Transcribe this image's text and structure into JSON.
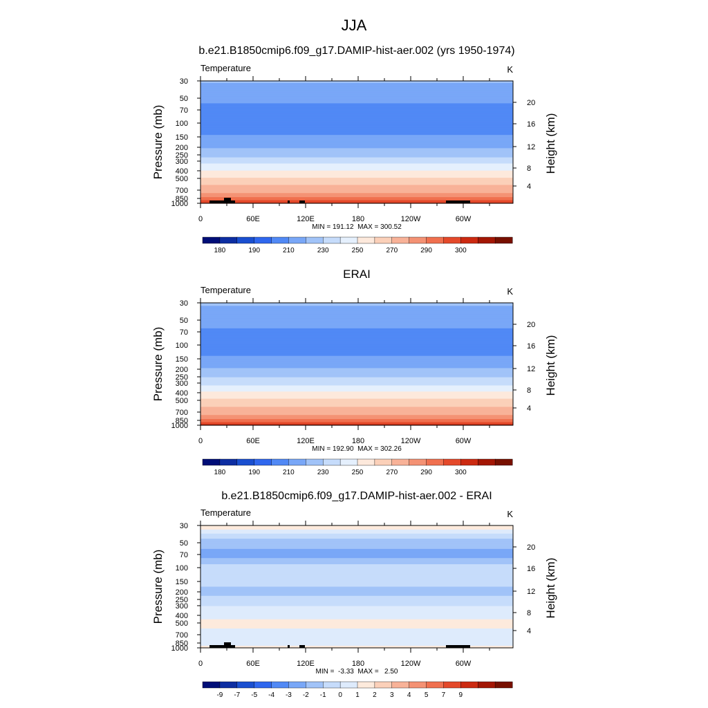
{
  "page": {
    "title": "JJA"
  },
  "colors": {
    "abs_palette": [
      "#000e77",
      "#0d2ea2",
      "#1a4fd0",
      "#2f67ee",
      "#5189f5",
      "#79a7f7",
      "#a1c3f8",
      "#c6dcfb",
      "#e5f0fd",
      "#fde9dc",
      "#fbd0b9",
      "#f8b298",
      "#f49274",
      "#f0704f",
      "#e4492a",
      "#cc2a11",
      "#a31604",
      "#771000"
    ],
    "diff_palette": [
      "#000e77",
      "#0d2ea2",
      "#1a4fd0",
      "#2f67ee",
      "#5189f5",
      "#79a7f7",
      "#a1c3f8",
      "#c6dcfb",
      "#deebfc",
      "#fdeadc",
      "#fbd0b9",
      "#f8b298",
      "#f49274",
      "#f0704f",
      "#e4492a",
      "#cc2a11",
      "#a31604",
      "#771000"
    ],
    "topography": "#000000"
  },
  "chart_data": [
    {
      "type": "heatmap",
      "title": "b.e21.B1850cmip6.f09_g17.DAMIP-hist-aer.002 (yrs 1950-1974)",
      "variable_label": "Temperature",
      "units": "K",
      "ylabel": "Pressure (mb)",
      "ylabel_right": "Height (km)",
      "x_ticks": [
        "0",
        "60E",
        "120E",
        "180",
        "120W",
        "60W"
      ],
      "y_ticks": [
        "30",
        "50",
        "70",
        "100",
        "150",
        "200",
        "250",
        "300",
        "400",
        "500",
        "700",
        "850",
        "1000"
      ],
      "y2_ticks": [
        "20",
        "16",
        "12",
        "8",
        "4"
      ],
      "stats": "MIN = 191.12  MAX = 300.52",
      "min": 191.12,
      "max": 300.52,
      "colorbar_labels": [
        "180",
        "190",
        "210",
        "230",
        "250",
        "270",
        "290",
        "300"
      ],
      "zonal_mean_profile": [
        {
          "p": 30,
          "t": 221
        },
        {
          "p": 50,
          "t": 213
        },
        {
          "p": 70,
          "t": 206
        },
        {
          "p": 100,
          "t": 203
        },
        {
          "p": 150,
          "t": 211
        },
        {
          "p": 200,
          "t": 219
        },
        {
          "p": 250,
          "t": 227
        },
        {
          "p": 300,
          "t": 236
        },
        {
          "p": 400,
          "t": 250
        },
        {
          "p": 500,
          "t": 261
        },
        {
          "p": 700,
          "t": 277
        },
        {
          "p": 850,
          "t": 287
        },
        {
          "p": 1000,
          "t": 295
        }
      ]
    },
    {
      "type": "heatmap",
      "title": "ERAI",
      "variable_label": "Temperature",
      "units": "K",
      "ylabel": "Pressure (mb)",
      "ylabel_right": "Height (km)",
      "x_ticks": [
        "0",
        "60E",
        "120E",
        "180",
        "120W",
        "60W"
      ],
      "y_ticks": [
        "30",
        "50",
        "70",
        "100",
        "150",
        "200",
        "250",
        "300",
        "400",
        "500",
        "700",
        "850",
        "1000"
      ],
      "y2_ticks": [
        "20",
        "16",
        "12",
        "8",
        "4"
      ],
      "stats": "MIN = 192.90  MAX = 302.26",
      "min": 192.9,
      "max": 302.26,
      "colorbar_labels": [
        "180",
        "190",
        "210",
        "230",
        "250",
        "270",
        "290",
        "300"
      ],
      "zonal_mean_profile": [
        {
          "p": 30,
          "t": 221
        },
        {
          "p": 50,
          "t": 215
        },
        {
          "p": 70,
          "t": 208
        },
        {
          "p": 100,
          "t": 204
        },
        {
          "p": 150,
          "t": 212
        },
        {
          "p": 200,
          "t": 221
        },
        {
          "p": 250,
          "t": 229
        },
        {
          "p": 300,
          "t": 237
        },
        {
          "p": 400,
          "t": 251
        },
        {
          "p": 500,
          "t": 262
        },
        {
          "p": 700,
          "t": 277
        },
        {
          "p": 850,
          "t": 287
        },
        {
          "p": 1000,
          "t": 296
        }
      ]
    },
    {
      "type": "heatmap",
      "title": "b.e21.B1850cmip6.f09_g17.DAMIP-hist-aer.002 - ERAI",
      "variable_label": "Temperature",
      "units": "K",
      "ylabel": "Pressure (mb)",
      "ylabel_right": "Height (km)",
      "x_ticks": [
        "0",
        "60E",
        "120E",
        "180",
        "120W",
        "60W"
      ],
      "y_ticks": [
        "30",
        "50",
        "70",
        "100",
        "150",
        "200",
        "250",
        "300",
        "400",
        "500",
        "700",
        "850",
        "1000"
      ],
      "y2_ticks": [
        "20",
        "16",
        "12",
        "8",
        "4"
      ],
      "stats": "MIN =  -3.33  MAX =   2.50",
      "min": -3.33,
      "max": 2.5,
      "colorbar_labels": [
        "-9",
        "-7",
        "-5",
        "-4",
        "-3",
        "-2",
        "-1",
        "0",
        "1",
        "2",
        "3",
        "4",
        "5",
        "7",
        "9"
      ],
      "zonal_mean_profile": [
        {
          "p": 30,
          "t": 0.5
        },
        {
          "p": 50,
          "t": -1.5
        },
        {
          "p": 70,
          "t": -2.5
        },
        {
          "p": 100,
          "t": -0.5
        },
        {
          "p": 150,
          "t": -0.8
        },
        {
          "p": 200,
          "t": -1.2
        },
        {
          "p": 250,
          "t": -0.8
        },
        {
          "p": 300,
          "t": -0.5
        },
        {
          "p": 400,
          "t": -0.3
        },
        {
          "p": 500,
          "t": 0.3
        },
        {
          "p": 700,
          "t": -0.3
        },
        {
          "p": 850,
          "t": -0.5
        },
        {
          "p": 1000,
          "t": 0.3
        }
      ]
    }
  ]
}
